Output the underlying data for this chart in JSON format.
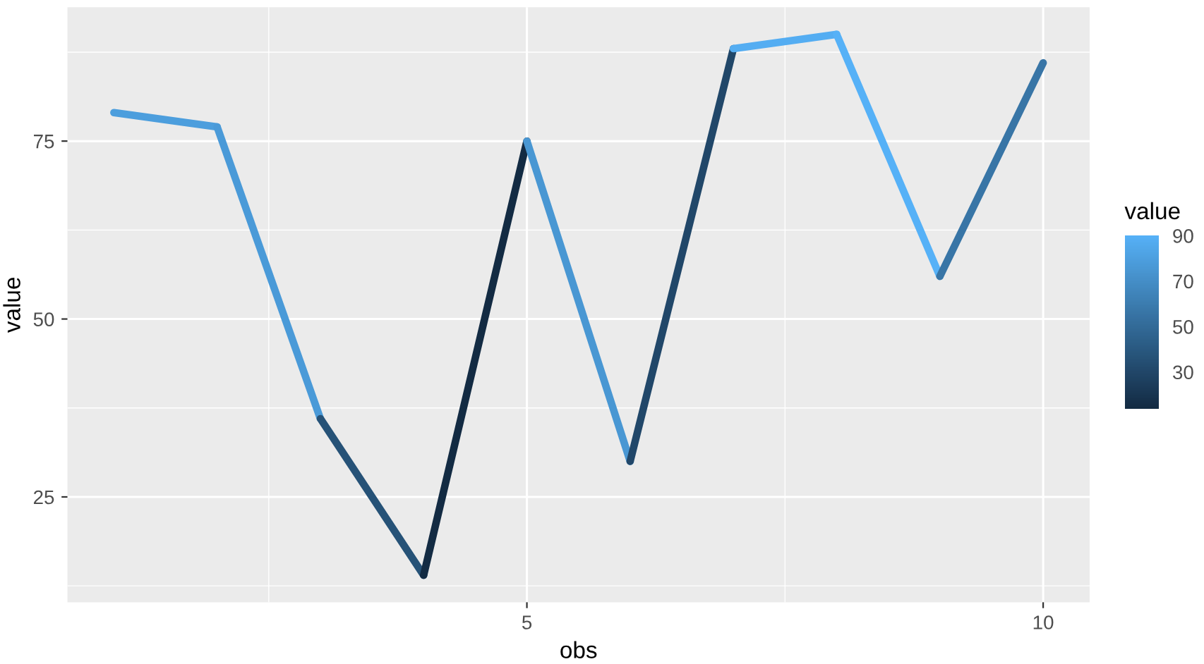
{
  "chart_data": {
    "type": "line",
    "xlabel": "obs",
    "ylabel": "value",
    "clabel": "value",
    "series": [
      {
        "x": [
          1,
          2
        ],
        "values": [
          79,
          77
        ],
        "color": "#4c9edd"
      },
      {
        "x": [
          2,
          3
        ],
        "values": [
          77,
          36
        ],
        "color": "#4a9ad8"
      },
      {
        "x": [
          3,
          4
        ],
        "values": [
          36,
          14
        ],
        "color": "#265277"
      },
      {
        "x": [
          4,
          5
        ],
        "values": [
          14,
          75
        ],
        "color": "#132b43"
      },
      {
        "x": [
          5,
          6
        ],
        "values": [
          75,
          30
        ],
        "color": "#4997d3"
      },
      {
        "x": [
          6,
          7
        ],
        "values": [
          30,
          88
        ],
        "color": "#214769"
      },
      {
        "x": [
          7,
          8
        ],
        "values": [
          88,
          90
        ],
        "color": "#54adf2"
      },
      {
        "x": [
          8,
          9
        ],
        "values": [
          90,
          56
        ],
        "color": "#56b1f7"
      },
      {
        "x": [
          9,
          10
        ],
        "values": [
          56,
          86
        ],
        "color": "#3875a6"
      }
    ],
    "clim": [
      14,
      90
    ],
    "cticks": [
      30,
      50,
      70,
      90
    ],
    "xlim": [
      0.55,
      10.45
    ],
    "ylim": [
      10.2,
      93.8
    ],
    "xticks": [
      5,
      10
    ],
    "yticks": [
      25,
      50,
      75
    ],
    "grid": true,
    "legend": false,
    "marker": "none",
    "line_style": "solid"
  }
}
